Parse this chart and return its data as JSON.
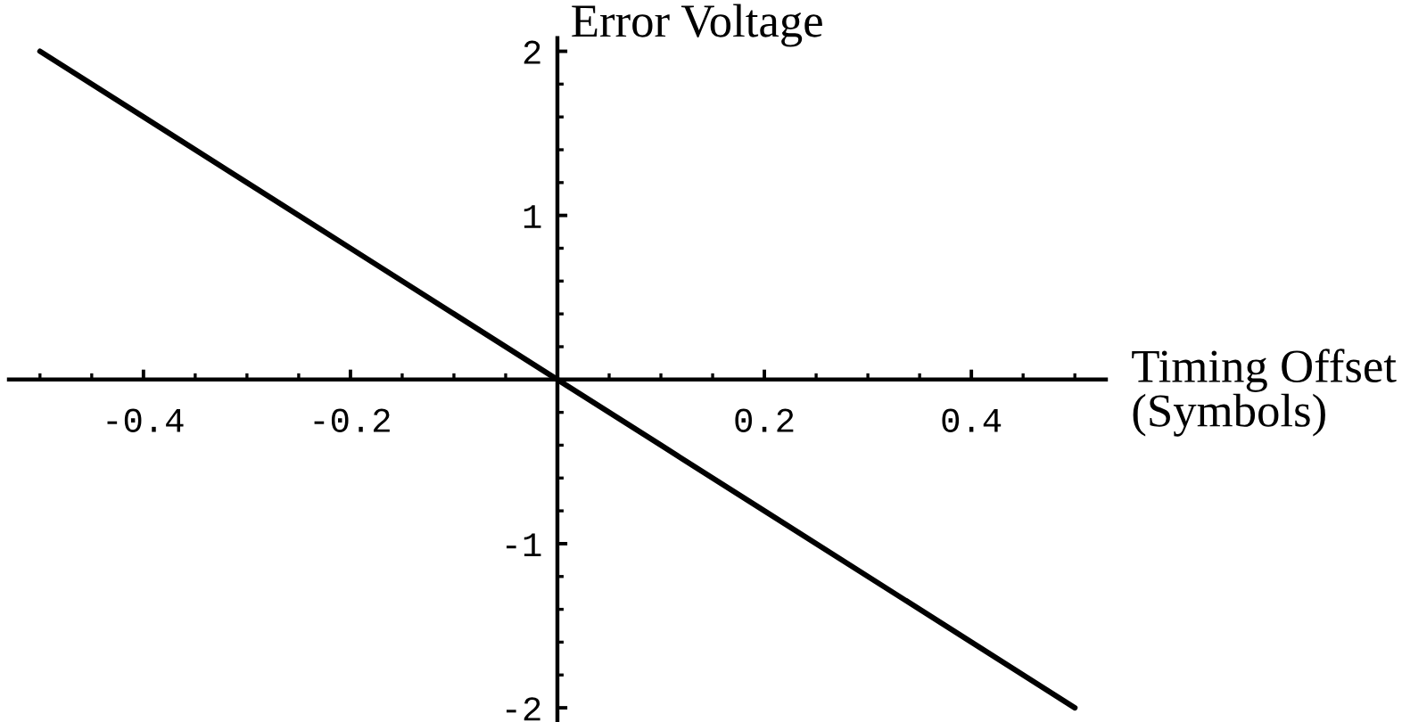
{
  "chart_data": {
    "type": "line",
    "xlabel": "Timing Offset\n(Symbols)",
    "ylabel": "Error Voltage",
    "x": [
      -0.5,
      -0.4,
      -0.3,
      -0.2,
      -0.1,
      0,
      0.1,
      0.2,
      0.3,
      0.4,
      0.5
    ],
    "series": [
      {
        "color": "#000000",
        "values": [
          2.0,
          1.6,
          1.2,
          0.8,
          0.4,
          0,
          -0.4,
          -0.8,
          -1.2,
          -1.6,
          -2.0
        ]
      }
    ],
    "xlim": [
      -0.53,
      0.53
    ],
    "ylim": [
      -2.08,
      2.08
    ],
    "xticks": [
      -0.4,
      -0.2,
      0.2,
      0.4
    ],
    "yticks": [
      -2,
      -1,
      1,
      2
    ]
  }
}
